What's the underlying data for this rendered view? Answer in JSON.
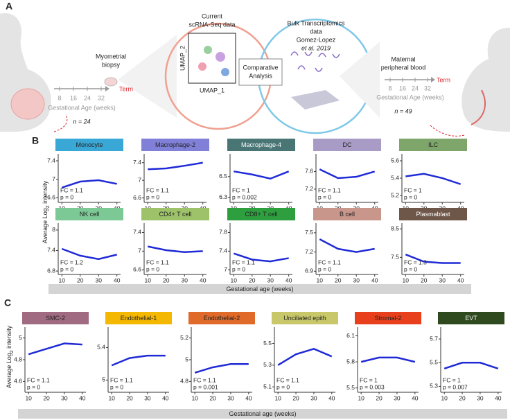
{
  "panel_a": {
    "label": "A",
    "left_timeline": {
      "ticks": [
        8,
        16,
        24,
        32
      ],
      "end": "Term",
      "axis_label": "Gestational Age (weeks)",
      "n": "n = 24"
    },
    "biopsy": [
      "Myometrial",
      "biopsy"
    ],
    "scrna": {
      "title": [
        "Current",
        "scRNA-Seq data"
      ],
      "x_label": "UMAP_1",
      "y_label": "UMAP_2"
    },
    "comparison": [
      "Comparative",
      "Analysis"
    ],
    "bulk": [
      "Bulk Transcriptomics",
      "data",
      "Gomez-Lopez",
      "et al. 2019"
    ],
    "blood": [
      "Maternal",
      "peripheral blood"
    ],
    "right_timeline": {
      "ticks": [
        8,
        16,
        24,
        32
      ],
      "end": "Term",
      "axis_label": "Gestational Age (weeks)",
      "n": "n = 49"
    }
  },
  "panel_b": {
    "label": "B",
    "y_label": [
      "Average Log",
      "2",
      " intensity"
    ],
    "x_label": "Gestational age (weeks)",
    "charts": [
      {
        "title": "Monocyte",
        "color": "#3aa8d6",
        "xlim": [
          8,
          42
        ],
        "xticks": [
          10,
          20,
          30,
          40
        ],
        "ylim": [
          6.5,
          7.55
        ],
        "yticks": [
          6.6,
          7.0,
          7.4
        ],
        "fc": "FC = 1.1",
        "p": "p = 0",
        "trend": {
          "x": [
            10,
            20,
            30,
            40
          ],
          "values": [
            6.82,
            6.95,
            6.98,
            6.9
          ]
        }
      },
      {
        "title": "Macrophage-2",
        "color": "#8080d8",
        "xlim": [
          8,
          42
        ],
        "xticks": [
          10,
          20,
          30,
          40
        ],
        "ylim": [
          6.5,
          7.6
        ],
        "yticks": [
          6.6,
          7.0,
          7.4
        ],
        "fc": "FC = 1.1",
        "p": "p = 0",
        "trend": {
          "x": [
            10,
            20,
            30,
            40
          ],
          "values": [
            7.25,
            7.27,
            7.33,
            7.4
          ]
        }
      },
      {
        "title": "Macrophage-4",
        "color": "#4a7575",
        "xlim": [
          8,
          42
        ],
        "xticks": [
          10,
          20,
          30,
          40
        ],
        "ylim": [
          6.25,
          6.72
        ],
        "yticks": [
          6.3,
          6.5
        ],
        "fc": "FC = 1",
        "p": "p = 0.002",
        "trend": {
          "x": [
            10,
            20,
            30,
            40
          ],
          "values": [
            6.55,
            6.52,
            6.48,
            6.55
          ]
        }
      },
      {
        "title": "DC",
        "color": "#a89cc6",
        "xlim": [
          8,
          42
        ],
        "xticks": [
          10,
          20,
          30,
          40
        ],
        "ylim": [
          6.9,
          8.0
        ],
        "yticks": [
          7.2,
          7.6
        ],
        "fc": "FC = 1.1",
        "p": "p = 0",
        "trend": {
          "x": [
            10,
            20,
            30,
            40
          ],
          "values": [
            7.65,
            7.45,
            7.48,
            7.6
          ]
        }
      },
      {
        "title": "ILC",
        "color": "#7ea66a",
        "xlim": [
          8,
          42
        ],
        "xticks": [
          10,
          20,
          30,
          40
        ],
        "ylim": [
          5.12,
          5.68
        ],
        "yticks": [
          5.2,
          5.4,
          5.6
        ],
        "fc": "FC = 1",
        "p": "p = 0",
        "trend": {
          "x": [
            10,
            20,
            30,
            40
          ],
          "values": [
            5.42,
            5.45,
            5.4,
            5.33
          ]
        }
      },
      {
        "title": "NK cell",
        "color": "#7cc996",
        "xlim": [
          8,
          42
        ],
        "xticks": [
          10,
          20,
          30,
          40
        ],
        "ylim": [
          6.7,
          8.2
        ],
        "yticks": [
          6.8,
          7.4,
          8.0
        ],
        "fc": "FC = 1.2",
        "p": "p = 0",
        "trend": {
          "x": [
            10,
            20,
            30,
            40
          ],
          "values": [
            7.45,
            7.25,
            7.15,
            7.28
          ]
        }
      },
      {
        "title": "CD4+ T cell",
        "color": "#9ec26a",
        "xlim": [
          8,
          42
        ],
        "xticks": [
          10,
          20,
          30,
          40
        ],
        "ylim": [
          6.5,
          7.6
        ],
        "yticks": [
          6.6,
          7.0,
          7.4
        ],
        "fc": "FC = 1.1",
        "p": "p = 0",
        "trend": {
          "x": [
            10,
            20,
            30,
            40
          ],
          "values": [
            7.1,
            7.02,
            6.98,
            7.0
          ]
        }
      },
      {
        "title": "CD8+ T cell",
        "color": "#2e9f3e",
        "xlim": [
          8,
          42
        ],
        "xticks": [
          10,
          20,
          30,
          40
        ],
        "ylim": [
          6.9,
          8.0
        ],
        "yticks": [
          7.0,
          7.4,
          7.8
        ],
        "fc": "FC = 1.1",
        "p": "p = 0",
        "trend": {
          "x": [
            10,
            20,
            30,
            40
          ],
          "values": [
            7.35,
            7.22,
            7.18,
            7.25
          ]
        }
      },
      {
        "title": "B cell",
        "color": "#c8968a",
        "xlim": [
          8,
          42
        ],
        "xticks": [
          10,
          20,
          30,
          40
        ],
        "ylim": [
          6.85,
          7.65
        ],
        "yticks": [
          6.9,
          7.2,
          7.5
        ],
        "fc": "FC = 1.1",
        "p": "p = 0",
        "trend": {
          "x": [
            10,
            20,
            30,
            40
          ],
          "values": [
            7.4,
            7.25,
            7.2,
            7.25
          ]
        }
      },
      {
        "title": "Plasmablast",
        "color": "#6e5648",
        "xlim": [
          8,
          42
        ],
        "xticks": [
          10,
          20,
          30,
          40
        ],
        "ylim": [
          6.9,
          8.7
        ],
        "yticks": [
          7.5,
          8.5
        ],
        "fc": "FC = 1.3",
        "p": "p = 0",
        "trend": {
          "x": [
            10,
            20,
            30,
            40
          ],
          "values": [
            7.6,
            7.35,
            7.3,
            7.3
          ]
        }
      }
    ]
  },
  "panel_c": {
    "label": "C",
    "y_label": [
      "Average Log",
      "2",
      " intensity"
    ],
    "x_label": "Gestational age (weeks)",
    "charts": [
      {
        "title": "SMC-2",
        "color": "#a06a80",
        "xlim": [
          8,
          42
        ],
        "xticks": [
          10,
          20,
          30,
          40
        ],
        "ylim": [
          4.5,
          5.1
        ],
        "yticks": [
          4.6,
          4.8,
          5.0
        ],
        "fc": "FC = 1.1",
        "p": "p = 0",
        "trend": {
          "x": [
            10,
            20,
            30,
            40
          ],
          "values": [
            4.85,
            4.9,
            4.95,
            4.94
          ]
        }
      },
      {
        "title": "Endothelial-1",
        "color": "#f5b800",
        "xlim": [
          8,
          42
        ],
        "xticks": [
          10,
          20,
          30,
          40
        ],
        "ylim": [
          4.85,
          5.65
        ],
        "yticks": [
          5.0,
          5.4
        ],
        "fc": "FC = 1.1",
        "p": "p = 0",
        "trend": {
          "x": [
            10,
            20,
            30,
            40
          ],
          "values": [
            5.18,
            5.27,
            5.3,
            5.3
          ]
        }
      },
      {
        "title": "Endothelial-2",
        "color": "#e06a2a",
        "xlim": [
          8,
          42
        ],
        "xticks": [
          10,
          20,
          30,
          40
        ],
        "ylim": [
          4.7,
          5.3
        ],
        "yticks": [
          4.8,
          5.0,
          5.2
        ],
        "fc": "FC = 1.1",
        "p": "p = 0.001",
        "trend": {
          "x": [
            10,
            20,
            30,
            40
          ],
          "values": [
            4.88,
            4.93,
            4.96,
            4.96
          ]
        }
      },
      {
        "title": "Unciliated epith",
        "color": "#c8c86a",
        "xlim": [
          8,
          42
        ],
        "xticks": [
          10,
          20,
          30,
          40
        ],
        "ylim": [
          5.05,
          5.65
        ],
        "yticks": [
          5.1,
          5.3,
          5.5
        ],
        "fc": "FC = 1.1",
        "p": "p = 0",
        "trend": {
          "x": [
            10,
            20,
            30,
            40
          ],
          "values": [
            5.3,
            5.4,
            5.45,
            5.38
          ]
        }
      },
      {
        "title": "Stromal-2",
        "color": "#e8401c",
        "xlim": [
          8,
          42
        ],
        "xticks": [
          10,
          20,
          30,
          40
        ],
        "ylim": [
          5.45,
          6.2
        ],
        "yticks": [
          5.5,
          5.8,
          6.1
        ],
        "fc": "FC = 1",
        "p": "p = 0.003",
        "trend": {
          "x": [
            10,
            20,
            30,
            40
          ],
          "values": [
            5.8,
            5.85,
            5.85,
            5.8
          ]
        }
      },
      {
        "title": "EVT",
        "color": "#2e4a1e",
        "xlim": [
          8,
          42
        ],
        "xticks": [
          10,
          20,
          30,
          40
        ],
        "ylim": [
          5.25,
          5.8
        ],
        "yticks": [
          5.3,
          5.5,
          5.7
        ],
        "fc": "FC = 1",
        "p": "p = 0.007",
        "trend": {
          "x": [
            10,
            20,
            30,
            40
          ],
          "values": [
            5.45,
            5.5,
            5.5,
            5.45
          ]
        }
      }
    ]
  }
}
